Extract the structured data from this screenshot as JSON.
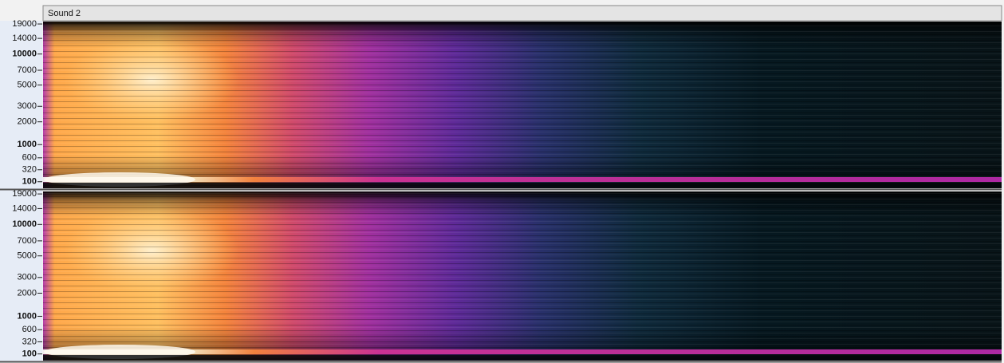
{
  "track": {
    "title": "Sound 2"
  },
  "spectrogram": {
    "scale": "mel",
    "ylim": [
      0,
      20000
    ]
  },
  "channels": [
    {
      "yticks": [
        19000,
        14000,
        10000,
        7000,
        5000,
        3000,
        2000,
        1000,
        600,
        320,
        100
      ]
    },
    {
      "yticks": [
        19000,
        14000,
        10000,
        7000,
        5000,
        3000,
        2000,
        1000,
        600,
        320,
        100
      ]
    }
  ]
}
